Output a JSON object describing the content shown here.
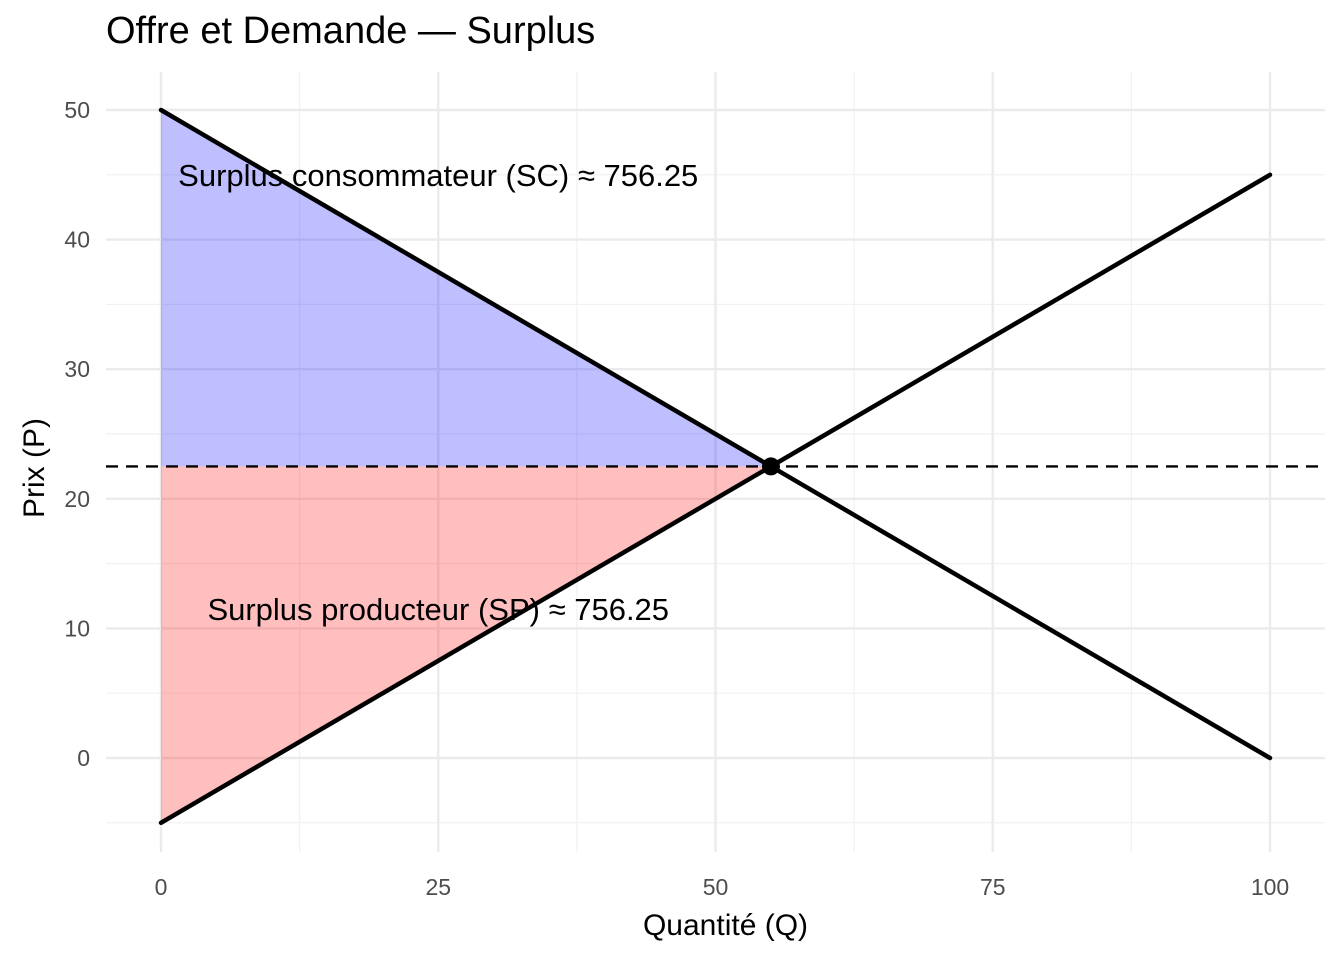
{
  "chart_data": {
    "type": "line",
    "title": "Offre et Demande — Surplus",
    "xlabel": "Quantité (Q)",
    "ylabel": "Prix (P)",
    "xlim": [
      0,
      100
    ],
    "ylim": [
      -5,
      50
    ],
    "x_ticks": [
      0,
      25,
      50,
      75,
      100
    ],
    "y_ticks": [
      0,
      10,
      20,
      30,
      40,
      50
    ],
    "grid": true,
    "series": [
      {
        "x": [
          0,
          100
        ],
        "y": [
          50,
          0
        ],
        "color": "#000000"
      },
      {
        "x": [
          0,
          100
        ],
        "y": [
          -5,
          45
        ],
        "color": "#000000"
      }
    ],
    "equilibrium": {
      "q": 55,
      "p": 22.5
    },
    "equilibrium_price_line": {
      "y": 22.5,
      "style": "dashed"
    },
    "areas": [
      {
        "polygon": [
          [
            0,
            50
          ],
          [
            55,
            22.5
          ],
          [
            0,
            22.5
          ]
        ],
        "color": "#0000ff",
        "opacity": 0.25
      },
      {
        "polygon": [
          [
            0,
            22.5
          ],
          [
            55,
            22.5
          ],
          [
            0,
            -5
          ]
        ],
        "color": "#ff0000",
        "opacity": 0.25
      }
    ],
    "annotations": [
      {
        "text": "Surplus consommateur (SC) ≈ 756.25",
        "x": 25,
        "y": 45
      },
      {
        "text": "Surplus producteur (SP) ≈ 756.25",
        "x": 25,
        "y": 11.5
      }
    ]
  }
}
